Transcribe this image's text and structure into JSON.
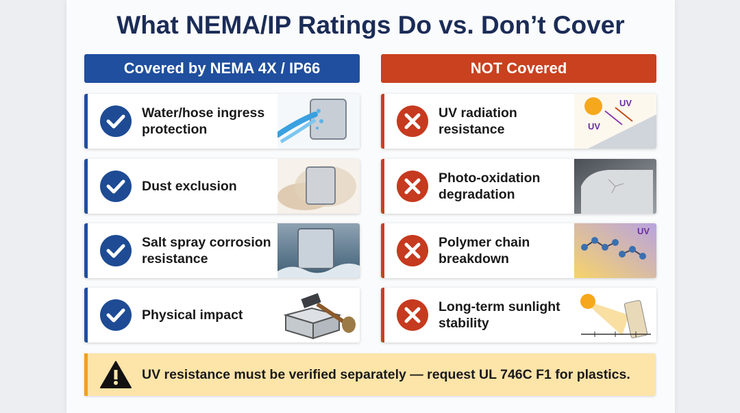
{
  "title": "What NEMA/IP Ratings Do vs. Don’t Cover",
  "covered": {
    "header": "Covered by NEMA 4X / IP66",
    "items": [
      "Water/hose ingress protection",
      "Dust exclusion",
      "Salt spray corrosion resistance",
      "Physical impact"
    ]
  },
  "not_covered": {
    "header": "NOT Covered",
    "items": [
      "UV radiation resistance",
      "Photo-oxidation degradation",
      "Polymer chain breakdown",
      "Long-term sunlight stability"
    ],
    "image_labels": [
      "UV",
      "UV",
      "UV"
    ]
  },
  "footer": "UV resistance must be verified separately — request UL 746C F1 for plastics."
}
